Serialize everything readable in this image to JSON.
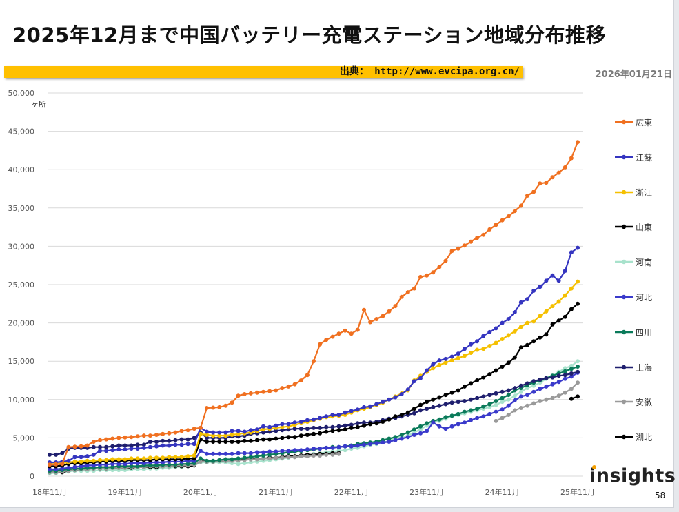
{
  "title": "2025年12月まで中国バッテリー充電ステーション地域分布推移",
  "source": "出典： http://www.evcipa.org.cn/",
  "date": "2026年01月21日",
  "logo": "insights",
  "page_number": "58",
  "chart_data": {
    "type": "line",
    "title": "",
    "xlabel": "",
    "ylabel": "ヶ所",
    "ylim": [
      0,
      50000
    ],
    "yticks": [
      0,
      5000,
      10000,
      15000,
      20000,
      25000,
      30000,
      35000,
      40000,
      45000,
      50000
    ],
    "ytick_labels": [
      "0",
      "5,000",
      "10,000",
      "15,000",
      "20,000",
      "25,000",
      "30,000",
      "35,000",
      "40,000",
      "45,000",
      "50,000"
    ],
    "x_start": "2018-11",
    "x_end": "2025-11",
    "x_interval": "monthly",
    "xtick_labels": [
      "18年11月",
      "19年11月",
      "20年11月",
      "21年11月",
      "22年11月",
      "23年11月",
      "24年11月",
      "25年11月"
    ],
    "grid": "horizontal",
    "legend_position": "right",
    "series": [
      {
        "name": "広東",
        "color": "#f07020",
        "values": [
          1500,
          1550,
          1600,
          3800,
          3850,
          3900,
          4000,
          4500,
          4700,
          4800,
          4900,
          5000,
          5050,
          5100,
          5200,
          5300,
          5300,
          5400,
          5500,
          5600,
          5700,
          5900,
          6000,
          6200,
          6300,
          8900,
          8950,
          9000,
          9200,
          9600,
          10500,
          10700,
          10800,
          10900,
          11000,
          11100,
          11200,
          11500,
          11700,
          12000,
          12500,
          13200,
          15000,
          17200,
          17800,
          18200,
          18600,
          19000,
          18600,
          19100,
          21700,
          20100,
          20500,
          20900,
          21500,
          22200,
          23400,
          24000,
          24500,
          26000,
          26200,
          26600,
          27300,
          28100,
          29400,
          29700,
          30100,
          30600,
          31100,
          31500,
          32200,
          32800,
          33400,
          33900,
          34600,
          35300,
          36600,
          37100,
          38200,
          38300,
          39000,
          39600,
          40300,
          41500,
          43600
        ]
      },
      {
        "name": "江蘇",
        "color": "#3535c0",
        "values": [
          1800,
          1800,
          1900,
          2000,
          2500,
          2500,
          2600,
          2800,
          3300,
          3300,
          3400,
          3500,
          3500,
          3600,
          3600,
          3700,
          3800,
          3900,
          4000,
          4000,
          4100,
          4100,
          4200,
          4200,
          6300,
          5800,
          5700,
          5700,
          5700,
          5900,
          5900,
          5800,
          6000,
          6100,
          6500,
          6400,
          6600,
          6800,
          6800,
          7000,
          7100,
          7300,
          7400,
          7600,
          7800,
          8000,
          8000,
          8300,
          8500,
          8700,
          9000,
          9100,
          9400,
          9700,
          10000,
          10300,
          10700,
          11300,
          12400,
          12800,
          13800,
          14600,
          15100,
          15300,
          15600,
          16000,
          16600,
          17200,
          17600,
          18300,
          18800,
          19300,
          20000,
          20500,
          21400,
          22700,
          23100,
          24200,
          24700,
          25500,
          26200,
          25500,
          26800,
          29200,
          29800
        ]
      },
      {
        "name": "浙江",
        "color": "#f5c000",
        "values": [
          1600,
          1600,
          1700,
          1800,
          1900,
          1900,
          2000,
          2000,
          2100,
          2100,
          2200,
          2200,
          2200,
          2300,
          2300,
          2300,
          2400,
          2400,
          2400,
          2500,
          2500,
          2500,
          2600,
          2700,
          5500,
          5400,
          5300,
          5300,
          5300,
          5400,
          5500,
          5600,
          5700,
          5900,
          6100,
          6200,
          6300,
          6400,
          6500,
          6700,
          6900,
          7100,
          7300,
          7500,
          7700,
          7800,
          7900,
          8000,
          8300,
          8600,
          8800,
          9000,
          9300,
          9600,
          10000,
          10400,
          10800,
          11200,
          12500,
          13100,
          13600,
          14100,
          14500,
          14800,
          15100,
          15400,
          15700,
          16100,
          16500,
          16600,
          17000,
          17400,
          17900,
          18400,
          18900,
          19500,
          20000,
          20200,
          20900,
          21500,
          22200,
          22800,
          23600,
          24500,
          25400
        ]
      },
      {
        "name": "山東",
        "color": "#000000",
        "values": [
          1300,
          1300,
          1400,
          1600,
          1700,
          1700,
          1800,
          1800,
          1900,
          1900,
          2000,
          2000,
          2000,
          2100,
          2100,
          2100,
          2100,
          2200,
          2200,
          2200,
          2200,
          2200,
          2300,
          2300,
          4800,
          4500,
          4500,
          4500,
          4500,
          4500,
          4500,
          4600,
          4600,
          4700,
          4800,
          4800,
          4900,
          5000,
          5100,
          5100,
          5300,
          5400,
          5500,
          5600,
          5800,
          5900,
          6000,
          6100,
          6300,
          6400,
          6600,
          6800,
          6900,
          7100,
          7400,
          7800,
          8000,
          8300,
          8800,
          9300,
          9700,
          10000,
          10300,
          10600,
          10900,
          11200,
          11700,
          12100,
          12500,
          12900,
          13300,
          13800,
          14300,
          14800,
          15500,
          16800,
          17100,
          17600,
          18100,
          18500,
          19800,
          20300,
          20800,
          21800,
          22500
        ]
      },
      {
        "name": "河南",
        "color": "#a8e2cc",
        "values": [
          400,
          400,
          500,
          600,
          700,
          700,
          700,
          700,
          800,
          800,
          800,
          800,
          800,
          900,
          900,
          900,
          1000,
          1000,
          1100,
          1100,
          1200,
          1200,
          1300,
          1400,
          1800,
          1800,
          1800,
          1800,
          1800,
          1700,
          1600,
          1700,
          1800,
          1900,
          2000,
          2100,
          2200,
          2300,
          2400,
          2500,
          2600,
          2700,
          2900,
          3000,
          3100,
          3200,
          3300,
          3400,
          3600,
          3700,
          3900,
          4100,
          4200,
          4400,
          4600,
          4900,
          5100,
          5300,
          5700,
          6100,
          6600,
          7000,
          7200,
          7500,
          7800,
          8000,
          8200,
          8400,
          8600,
          8800,
          9000,
          9300,
          9700,
          10000,
          10500,
          11000,
          11500,
          11800,
          12200,
          12700,
          13100,
          13600,
          14100,
          14400,
          15000
        ]
      },
      {
        "name": "河北",
        "color": "#3a3acb",
        "values": [
          900,
          900,
          1000,
          1100,
          1200,
          1300,
          1400,
          1400,
          1500,
          1500,
          1600,
          1600,
          1600,
          1700,
          1700,
          1700,
          1800,
          1800,
          1800,
          1900,
          1900,
          1900,
          2000,
          2000,
          3300,
          2900,
          2900,
          2900,
          2900,
          2900,
          3000,
          3000,
          3000,
          3100,
          3100,
          3200,
          3200,
          3300,
          3300,
          3400,
          3400,
          3500,
          3600,
          3600,
          3700,
          3700,
          3800,
          3900,
          3900,
          4000,
          4100,
          4200,
          4300,
          4400,
          4500,
          4700,
          4900,
          5100,
          5400,
          5600,
          5900,
          7000,
          6500,
          6200,
          6500,
          6800,
          7000,
          7300,
          7600,
          7800,
          8100,
          8400,
          8700,
          9200,
          9900,
          10400,
          10600,
          11000,
          11400,
          11700,
          12000,
          12300,
          12700,
          13000,
          13500
        ]
      },
      {
        "name": "四川",
        "color": "#0a7a5a",
        "values": [
          700,
          700,
          800,
          900,
          1000,
          1000,
          1100,
          1100,
          1200,
          1200,
          1200,
          1300,
          1300,
          1300,
          1300,
          1400,
          1400,
          1400,
          1500,
          1500,
          1500,
          1600,
          1600,
          1700,
          2300,
          2000,
          2000,
          2100,
          2200,
          2200,
          2300,
          2400,
          2500,
          2600,
          2700,
          2800,
          2900,
          3000,
          3100,
          3200,
          3300,
          3400,
          3500,
          3600,
          3700,
          3800,
          3800,
          3900,
          4000,
          4200,
          4300,
          4400,
          4500,
          4700,
          4900,
          5100,
          5400,
          5700,
          6100,
          6500,
          6900,
          7200,
          7400,
          7700,
          7900,
          8100,
          8400,
          8600,
          8800,
          9100,
          9400,
          9800,
          10200,
          10600,
          11200,
          11500,
          11900,
          12200,
          12500,
          12800,
          13100,
          13400,
          13700,
          14000,
          14300
        ]
      },
      {
        "name": "上海",
        "color": "#1f1f6e",
        "values": [
          2800,
          2800,
          3000,
          3600,
          3700,
          3700,
          3700,
          3800,
          3800,
          3800,
          3900,
          4000,
          4000,
          4000,
          4100,
          4100,
          4500,
          4500,
          4600,
          4600,
          4700,
          4800,
          4800,
          5000,
          5700,
          5000,
          5000,
          5000,
          5000,
          5200,
          5200,
          5300,
          5500,
          5600,
          5700,
          5800,
          5900,
          6000,
          6100,
          6200,
          6200,
          6200,
          6300,
          6300,
          6400,
          6400,
          6500,
          6600,
          6700,
          6900,
          7000,
          7000,
          7100,
          7300,
          7500,
          7600,
          7800,
          8000,
          8200,
          8600,
          8800,
          9000,
          9200,
          9400,
          9600,
          9700,
          9800,
          10000,
          10200,
          10400,
          10600,
          10800,
          11000,
          11200,
          11500,
          11800,
          12100,
          12400,
          12600,
          12800,
          12900,
          13100,
          13200,
          13400,
          13600
        ]
      },
      {
        "name": "安徽",
        "color": "#9a9a9a",
        "values": [
          500,
          500,
          600,
          700,
          800,
          900,
          900,
          1000,
          1000,
          1000,
          1100,
          1100,
          1100,
          1200,
          1200,
          1200,
          1300,
          1300,
          1300,
          1300,
          1400,
          1400,
          1400,
          1500,
          1900,
          1900,
          1900,
          2000,
          2000,
          2000,
          2100,
          2100,
          2200,
          2200,
          2300,
          2300,
          2400,
          2400,
          2500,
          2500,
          2600,
          2600,
          2700,
          2700,
          2800,
          2800,
          2900,
          null,
          null,
          null,
          null,
          null,
          null,
          null,
          null,
          null,
          null,
          null,
          null,
          null,
          null,
          null,
          null,
          null,
          null,
          null,
          null,
          null,
          null,
          null,
          null,
          7200,
          7600,
          8000,
          8600,
          8900,
          9200,
          9500,
          9800,
          10000,
          10200,
          10500,
          10900,
          11400,
          12200
        ]
      },
      {
        "name": "湖北",
        "color": "#000000",
        "values": [
          500,
          500,
          500,
          700,
          800,
          900,
          900,
          1000,
          1000,
          1000,
          1100,
          1100,
          1100,
          1100,
          1200,
          1200,
          1200,
          1200,
          1300,
          1300,
          1300,
          1300,
          1300,
          1400,
          2000,
          1900,
          1900,
          2000,
          2000,
          2100,
          2100,
          2200,
          2200,
          2300,
          2300,
          2400,
          2400,
          2500,
          2600,
          2600,
          2700,
          2800,
          2800,
          2900,
          2900,
          3000,
          3000,
          null,
          null,
          null,
          null,
          null,
          null,
          null,
          null,
          null,
          null,
          null,
          null,
          null,
          null,
          null,
          null,
          null,
          null,
          null,
          null,
          null,
          null,
          null,
          null,
          null,
          null,
          null,
          null,
          null,
          null,
          null,
          null,
          null,
          null,
          null,
          null,
          10100,
          10400
        ]
      }
    ]
  }
}
